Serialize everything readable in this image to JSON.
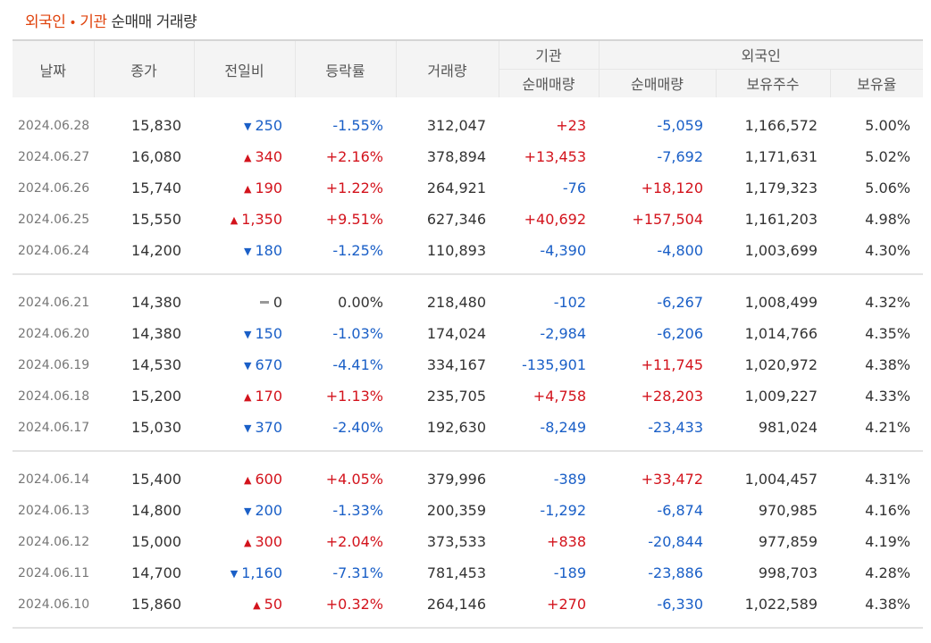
{
  "title": {
    "foreign": "외국인",
    "dot": "•",
    "inst": "기관",
    "rest": "순매매 거래량"
  },
  "headers": {
    "date": "날짜",
    "close": "종가",
    "change": "전일비",
    "rate": "등락률",
    "volume": "거래량",
    "inst_group": "기관",
    "foreign_group": "외국인",
    "inst_net": "순매매량",
    "foreign_net": "순매매량",
    "foreign_hold": "보유주수",
    "foreign_ratio": "보유율"
  },
  "groups": [
    [
      {
        "date": "2024.06.28",
        "close": "15,830",
        "dir": "down",
        "change": "250",
        "rate": "-1.55%",
        "volume": "312,047",
        "inst": "+23",
        "foreign": "-5,059",
        "hold": "1,166,572",
        "ratio": "5.00%"
      },
      {
        "date": "2024.06.27",
        "close": "16,080",
        "dir": "up",
        "change": "340",
        "rate": "+2.16%",
        "volume": "378,894",
        "inst": "+13,453",
        "foreign": "-7,692",
        "hold": "1,171,631",
        "ratio": "5.02%"
      },
      {
        "date": "2024.06.26",
        "close": "15,740",
        "dir": "up",
        "change": "190",
        "rate": "+1.22%",
        "volume": "264,921",
        "inst": "-76",
        "foreign": "+18,120",
        "hold": "1,179,323",
        "ratio": "5.06%"
      },
      {
        "date": "2024.06.25",
        "close": "15,550",
        "dir": "up",
        "change": "1,350",
        "rate": "+9.51%",
        "volume": "627,346",
        "inst": "+40,692",
        "foreign": "+157,504",
        "hold": "1,161,203",
        "ratio": "4.98%"
      },
      {
        "date": "2024.06.24",
        "close": "14,200",
        "dir": "down",
        "change": "180",
        "rate": "-1.25%",
        "volume": "110,893",
        "inst": "-4,390",
        "foreign": "-4,800",
        "hold": "1,003,699",
        "ratio": "4.30%"
      }
    ],
    [
      {
        "date": "2024.06.21",
        "close": "14,380",
        "dir": "flat",
        "change": "0",
        "rate": "0.00%",
        "volume": "218,480",
        "inst": "-102",
        "foreign": "-6,267",
        "hold": "1,008,499",
        "ratio": "4.32%"
      },
      {
        "date": "2024.06.20",
        "close": "14,380",
        "dir": "down",
        "change": "150",
        "rate": "-1.03%",
        "volume": "174,024",
        "inst": "-2,984",
        "foreign": "-6,206",
        "hold": "1,014,766",
        "ratio": "4.35%"
      },
      {
        "date": "2024.06.19",
        "close": "14,530",
        "dir": "down",
        "change": "670",
        "rate": "-4.41%",
        "volume": "334,167",
        "inst": "-135,901",
        "foreign": "+11,745",
        "hold": "1,020,972",
        "ratio": "4.38%"
      },
      {
        "date": "2024.06.18",
        "close": "15,200",
        "dir": "up",
        "change": "170",
        "rate": "+1.13%",
        "volume": "235,705",
        "inst": "+4,758",
        "foreign": "+28,203",
        "hold": "1,009,227",
        "ratio": "4.33%"
      },
      {
        "date": "2024.06.17",
        "close": "15,030",
        "dir": "down",
        "change": "370",
        "rate": "-2.40%",
        "volume": "192,630",
        "inst": "-8,249",
        "foreign": "-23,433",
        "hold": "981,024",
        "ratio": "4.21%"
      }
    ],
    [
      {
        "date": "2024.06.14",
        "close": "15,400",
        "dir": "up",
        "change": "600",
        "rate": "+4.05%",
        "volume": "379,996",
        "inst": "-389",
        "foreign": "+33,472",
        "hold": "1,004,457",
        "ratio": "4.31%"
      },
      {
        "date": "2024.06.13",
        "close": "14,800",
        "dir": "down",
        "change": "200",
        "rate": "-1.33%",
        "volume": "200,359",
        "inst": "-1,292",
        "foreign": "-6,874",
        "hold": "970,985",
        "ratio": "4.16%"
      },
      {
        "date": "2024.06.12",
        "close": "15,000",
        "dir": "up",
        "change": "300",
        "rate": "+2.04%",
        "volume": "373,533",
        "inst": "+838",
        "foreign": "-20,844",
        "hold": "977,859",
        "ratio": "4.19%"
      },
      {
        "date": "2024.06.11",
        "close": "14,700",
        "dir": "down",
        "change": "1,160",
        "rate": "-7.31%",
        "volume": "781,453",
        "inst": "-189",
        "foreign": "-23,886",
        "hold": "998,703",
        "ratio": "4.28%"
      },
      {
        "date": "2024.06.10",
        "close": "15,860",
        "dir": "up",
        "change": "50",
        "rate": "+0.32%",
        "volume": "264,146",
        "inst": "+270",
        "foreign": "-6,330",
        "hold": "1,022,589",
        "ratio": "4.38%"
      }
    ]
  ],
  "icons": {
    "up": "triangle-up-icon",
    "down": "triangle-down-icon",
    "flat": "dash-icon"
  },
  "colors": {
    "up": "#d3131c",
    "down": "#1a5fc7",
    "title_accent": "#e0440e"
  }
}
